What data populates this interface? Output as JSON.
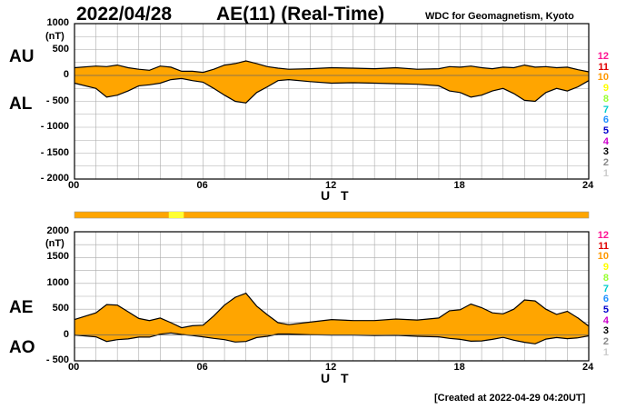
{
  "header": {
    "date": "2022/04/28",
    "title": "AE(11) (Real-Time)",
    "source": "WDC for Geomagnetism, Kyoto",
    "created": "[Created at 2022-04-29 04:20UT]"
  },
  "colors": {
    "fill": "#ffa500",
    "highlight": "#ffff33",
    "grid": "#aaaaaa",
    "line": "#000000"
  },
  "legend": {
    "items": [
      {
        "label": "12",
        "color": "#ff1493"
      },
      {
        "label": "11",
        "color": "#e00000"
      },
      {
        "label": "10",
        "color": "#ff9900"
      },
      {
        "label": "9",
        "color": "#ffff00"
      },
      {
        "label": "8",
        "color": "#99ff33"
      },
      {
        "label": "7",
        "color": "#00cccc"
      },
      {
        "label": "6",
        "color": "#1e90ff"
      },
      {
        "label": "5",
        "color": "#0000cc"
      },
      {
        "label": "4",
        "color": "#cc00cc"
      },
      {
        "label": "3",
        "color": "#000000"
      },
      {
        "label": "2",
        "color": "#888888"
      },
      {
        "label": "1",
        "color": "#cccccc"
      }
    ]
  },
  "chart_data": [
    {
      "type": "area",
      "unit": "(nT)",
      "xlabel": "U T",
      "series_labels": [
        "AU",
        "AL"
      ],
      "xlim": [
        0,
        24
      ],
      "ylim": [
        -2000,
        1000
      ],
      "x_ticks": [
        "00",
        "06",
        "12",
        "18",
        "24"
      ],
      "y_ticks": [
        "1000",
        "500",
        "0",
        "- 500",
        "- 1000",
        "- 1500",
        "- 2000"
      ],
      "grid": true,
      "series": [
        {
          "name": "AU",
          "x": [
            0,
            1,
            1.5,
            2,
            2.5,
            3,
            3.5,
            4,
            4.5,
            5,
            5.5,
            6,
            6.5,
            7,
            7.5,
            8,
            8.5,
            9,
            9.5,
            10,
            11,
            12,
            13,
            14,
            15,
            16,
            17,
            17.5,
            18,
            18.5,
            19,
            19.5,
            20,
            20.5,
            21,
            21.5,
            22,
            22.5,
            23,
            23.5,
            24
          ],
          "values": [
            150,
            180,
            170,
            200,
            150,
            120,
            100,
            180,
            160,
            80,
            80,
            60,
            120,
            200,
            230,
            280,
            230,
            170,
            140,
            120,
            130,
            150,
            140,
            130,
            150,
            120,
            130,
            170,
            160,
            180,
            150,
            130,
            160,
            150,
            200,
            160,
            170,
            150,
            160,
            110,
            70
          ]
        },
        {
          "name": "AL",
          "x": [
            0,
            1,
            1.5,
            2,
            2.5,
            3,
            3.5,
            4,
            4.5,
            5,
            5.5,
            6,
            6.5,
            7,
            7.5,
            8,
            8.5,
            9,
            9.5,
            10,
            11,
            12,
            13,
            14,
            15,
            16,
            17,
            17.5,
            18,
            18.5,
            19,
            19.5,
            20,
            20.5,
            21,
            21.5,
            22,
            22.5,
            23,
            23.5,
            24
          ],
          "values": [
            -150,
            -250,
            -420,
            -380,
            -300,
            -200,
            -180,
            -150,
            -80,
            -60,
            -100,
            -130,
            -250,
            -380,
            -500,
            -530,
            -330,
            -220,
            -100,
            -80,
            -120,
            -150,
            -140,
            -150,
            -160,
            -170,
            -200,
            -300,
            -330,
            -420,
            -380,
            -300,
            -250,
            -350,
            -480,
            -500,
            -330,
            -250,
            -300,
            -220,
            -100
          ]
        }
      ]
    },
    {
      "type": "area",
      "unit": "(nT)",
      "xlabel": "U T",
      "series_labels": [
        "AE",
        "AO"
      ],
      "xlim": [
        0,
        24
      ],
      "ylim": [
        -500,
        2000
      ],
      "x_ticks": [
        "00",
        "06",
        "12",
        "18",
        "24"
      ],
      "y_ticks": [
        "2000",
        "1500",
        "1000",
        "500",
        "0",
        "- 500"
      ],
      "grid": true,
      "series": [
        {
          "name": "AE",
          "x": [
            0,
            1,
            1.5,
            2,
            2.5,
            3,
            3.5,
            4,
            4.5,
            5,
            5.5,
            6,
            6.5,
            7,
            7.5,
            8,
            8.5,
            9,
            9.5,
            10,
            11,
            12,
            13,
            14,
            15,
            16,
            17,
            17.5,
            18,
            18.5,
            19,
            19.5,
            20,
            20.5,
            21,
            21.5,
            22,
            22.5,
            23,
            23.5,
            24
          ],
          "values": [
            300,
            430,
            590,
            580,
            450,
            320,
            280,
            330,
            240,
            140,
            180,
            190,
            370,
            580,
            730,
            810,
            560,
            390,
            240,
            200,
            250,
            300,
            280,
            280,
            310,
            290,
            330,
            470,
            490,
            600,
            530,
            430,
            410,
            500,
            680,
            660,
            500,
            400,
            460,
            330,
            170
          ]
        },
        {
          "name": "AO",
          "x": [
            0,
            1,
            1.5,
            2,
            2.5,
            3,
            3.5,
            4,
            4.5,
            5,
            5.5,
            6,
            6.5,
            7,
            7.5,
            8,
            8.5,
            9,
            9.5,
            10,
            11,
            12,
            13,
            14,
            15,
            16,
            17,
            17.5,
            18,
            18.5,
            19,
            19.5,
            20,
            20.5,
            21,
            21.5,
            22,
            22.5,
            23,
            23.5,
            24
          ],
          "values": [
            0,
            -35,
            -125,
            -90,
            -75,
            -40,
            -40,
            15,
            40,
            10,
            -10,
            -35,
            -65,
            -90,
            -135,
            -125,
            -50,
            -25,
            20,
            20,
            5,
            0,
            0,
            -10,
            -5,
            -25,
            -35,
            -65,
            -85,
            -120,
            -115,
            -85,
            -45,
            -100,
            -140,
            -170,
            -80,
            -50,
            -70,
            -55,
            -15
          ]
        }
      ]
    }
  ]
}
